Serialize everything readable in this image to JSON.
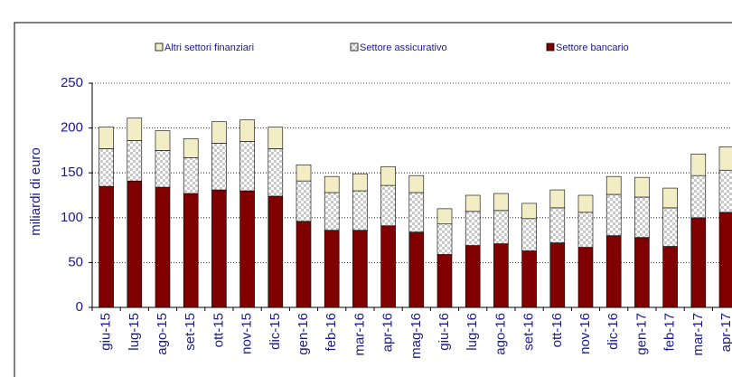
{
  "chart_data": {
    "type": "bar",
    "stacked": true,
    "y_label": "miliardi di euro",
    "categories": [
      "giu-15",
      "lug-15",
      "ago-15",
      "set-15",
      "ott-15",
      "nov-15",
      "dic-15",
      "gen-16",
      "feb-16",
      "mar-16",
      "apr-16",
      "mag-16",
      "giu-16",
      "lug-16",
      "ago-16",
      "set-16",
      "ott-16",
      "nov-16",
      "dic-16",
      "gen-17",
      "feb-17",
      "mar-17",
      "apr-17"
    ],
    "series": [
      {
        "name": "Settore bancario",
        "color": "#800000",
        "values": [
          135,
          141,
          134,
          127,
          131,
          130,
          124,
          96,
          86,
          86,
          91,
          84,
          59,
          69,
          71,
          63,
          72,
          67,
          80,
          78,
          68,
          100,
          106
        ]
      },
      {
        "name": "Settore assicurativo",
        "color": "#d9d9d9",
        "values": [
          42,
          45,
          41,
          40,
          52,
          55,
          53,
          45,
          42,
          44,
          45,
          44,
          34,
          38,
          37,
          36,
          39,
          39,
          46,
          45,
          43,
          47,
          47
        ]
      },
      {
        "name": "Altri settori finanziari",
        "color": "#f2edc4",
        "values": [
          24,
          25,
          22,
          21,
          24,
          24,
          24,
          18,
          18,
          19,
          21,
          19,
          17,
          18,
          19,
          17,
          20,
          19,
          20,
          22,
          22,
          24,
          26
        ]
      }
    ],
    "ylim": [
      0,
      250
    ],
    "yticks": [
      0,
      50,
      100,
      150,
      200,
      250
    ],
    "grid": true
  }
}
